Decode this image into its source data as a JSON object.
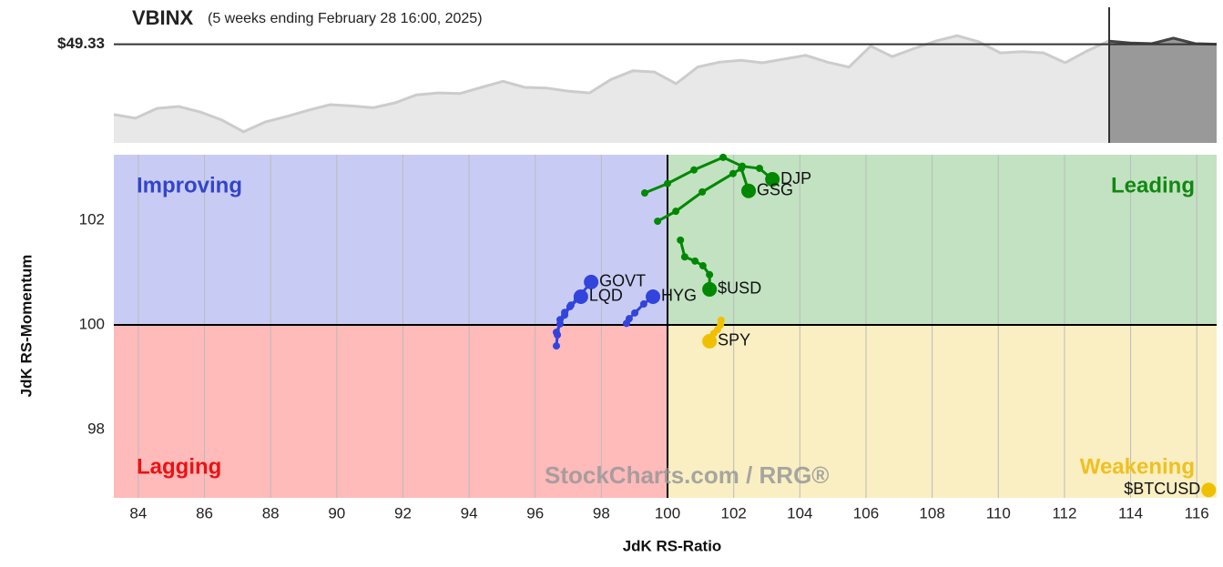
{
  "chart_data": [
    {
      "type": "area",
      "title": "VBINX",
      "subtitle": "(5 weeks ending February 28 16:00, 2025)",
      "color": "#cccccc",
      "values": [
        48.19,
        48.13,
        48.29,
        48.32,
        48.23,
        48.1,
        47.91,
        48.07,
        48.16,
        48.26,
        48.35,
        48.33,
        48.3,
        48.38,
        48.51,
        48.54,
        48.53,
        48.63,
        48.73,
        48.63,
        48.62,
        48.57,
        48.54,
        48.76,
        48.9,
        48.88,
        48.69,
        48.96,
        49.04,
        49.07,
        49.03,
        49.09,
        49.15,
        49.04,
        48.96,
        49.3,
        49.13,
        49.26,
        49.38,
        49.47,
        49.37,
        49.19,
        49.21,
        49.19,
        49.03,
        49.22,
        49.38,
        49.35,
        49.34,
        49.43,
        49.34,
        49.33
      ],
      "ylim": [
        47.73,
        49.93
      ],
      "reference": {
        "value": 49.33,
        "label": "$49.33"
      }
    },
    {
      "type": "rrg",
      "xlabel": "JdK RS-Ratio",
      "ylabel": "JdK RS-Momentum",
      "xlim": [
        83.26,
        116.6
      ],
      "ylim": [
        96.7,
        103.25
      ],
      "xticks": [
        84,
        86,
        88,
        90,
        92,
        94,
        96,
        98,
        100,
        102,
        104,
        106,
        108,
        110,
        112,
        114,
        116
      ],
      "yticks": [
        98,
        100,
        102
      ],
      "grid": true,
      "watermark": "StockCharts.com / RRG®",
      "quadrants": [
        {
          "name": "Improving",
          "color": "#c8ccf4",
          "text_color": "#3344cc"
        },
        {
          "name": "Leading",
          "color": "#c2e2c2",
          "text_color": "#118811"
        },
        {
          "name": "Lagging",
          "color": "#ffbaba",
          "text_color": "#ee1111"
        },
        {
          "name": "Weakening",
          "color": "#faefc2",
          "text_color": "#f0c020"
        }
      ],
      "series": [
        {
          "name": "DJP",
          "color": "#008800",
          "x": [
            99.31,
            100.0,
            100.8,
            101.68,
            102.26,
            102.78,
            103.17
          ],
          "y": [
            102.52,
            102.7,
            102.96,
            103.2,
            103.03,
            102.99,
            102.78
          ]
        },
        {
          "name": "GSG",
          "color": "#008800",
          "x": [
            99.7,
            100.25,
            101.05,
            101.98,
            102.23,
            102.45
          ],
          "y": [
            101.98,
            102.17,
            102.54,
            102.89,
            102.99,
            102.56
          ]
        },
        {
          "name": "$USD",
          "color": "#008800",
          "x": [
            100.39,
            100.52,
            100.83,
            101.07,
            101.27,
            101.27
          ],
          "y": [
            101.62,
            101.3,
            101.22,
            101.13,
            100.96,
            100.68
          ]
        },
        {
          "name": "SPY",
          "color": "#f0c000",
          "x": [
            101.62,
            101.6,
            101.51,
            101.4,
            101.27
          ],
          "y": [
            100.09,
            100.0,
            99.91,
            99.84,
            99.69
          ]
        },
        {
          "name": "GOVT",
          "color": "#3344dd",
          "x": [
            96.64,
            96.67,
            96.75,
            96.89,
            97.08,
            97.27,
            97.69
          ],
          "y": [
            99.6,
            99.81,
            100.1,
            100.24,
            100.38,
            100.5,
            100.82
          ]
        },
        {
          "name": "LQD",
          "color": "#3344dd",
          "x": [
            96.64,
            96.75,
            96.89,
            97.05,
            97.38
          ],
          "y": [
            99.86,
            100.02,
            100.19,
            100.35,
            100.54
          ]
        },
        {
          "name": "HYG",
          "color": "#3344dd",
          "x": [
            98.76,
            98.84,
            99.01,
            99.28,
            99.56
          ],
          "y": [
            100.03,
            100.12,
            100.23,
            100.4,
            100.54
          ]
        },
        {
          "name": "$BTCUSD",
          "color": "#f0c000",
          "x": [
            116.36
          ],
          "y": [
            96.85
          ]
        }
      ]
    }
  ]
}
